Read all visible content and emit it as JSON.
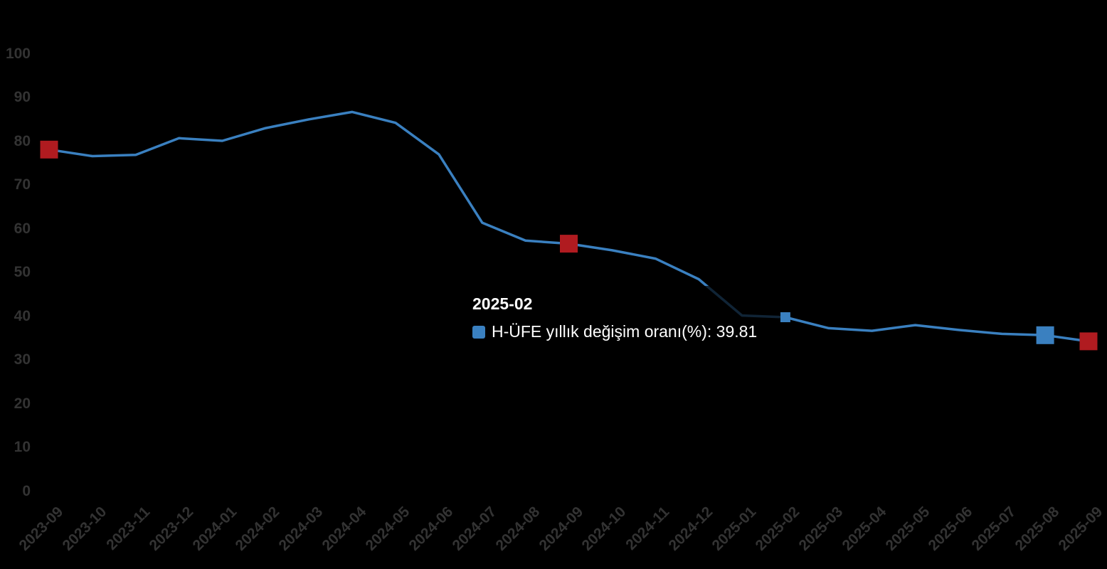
{
  "chart_data": {
    "type": "line",
    "title": "",
    "xlabel": "",
    "ylabel": "",
    "categories": [
      "2023-09",
      "2023-10",
      "2023-11",
      "2023-12",
      "2024-01",
      "2024-02",
      "2024-03",
      "2024-04",
      "2024-05",
      "2024-06",
      "2024-07",
      "2024-08",
      "2024-09",
      "2024-10",
      "2024-11",
      "2024-12",
      "2025-01",
      "2025-02",
      "2025-03",
      "2025-04",
      "2025-05",
      "2025-06",
      "2025-07",
      "2025-08",
      "2025-09"
    ],
    "series": [
      {
        "name": "H-ÜFE yıllık değişim oranı(%)",
        "color": "#3a80c0",
        "values": [
          78.1,
          76.6,
          76.9,
          80.7,
          80.1,
          83.0,
          85.0,
          86.7,
          84.2,
          77.0,
          61.4,
          57.3,
          56.6,
          55.1,
          53.2,
          48.5,
          40.2,
          39.81,
          37.3,
          36.7,
          38.0,
          36.9,
          36.0,
          35.7,
          34.3
        ]
      }
    ],
    "ylim": [
      0,
      100
    ],
    "yticks": [
      0,
      10,
      20,
      30,
      40,
      50,
      60,
      70,
      80,
      90,
      100
    ],
    "grid": false,
    "legend_visible": false,
    "x_label_rotation_deg": 45,
    "background_color": "#000000",
    "highlight_markers": [
      {
        "category": "2023-09",
        "index": 0,
        "color": "#b01b20",
        "size": 25,
        "kind": "endpoint-square"
      },
      {
        "category": "2024-09",
        "index": 12,
        "color": "#b01b20",
        "size": 25,
        "kind": "endpoint-square"
      },
      {
        "category": "2025-02",
        "index": 17,
        "color": "#3a80c0",
        "size": 14,
        "kind": "hovered-point-square"
      },
      {
        "category": "2025-08",
        "index": 23,
        "color": "#3a80c0",
        "size": 25,
        "kind": "endpoint-square"
      },
      {
        "category": "2025-09",
        "index": 24,
        "color": "#b01b20",
        "size": 25,
        "kind": "endpoint-square"
      }
    ]
  },
  "tooltip": {
    "title": "2025-02",
    "series_name": "H-ÜFE yıllık değişim oranı(%)",
    "value": "39.81",
    "text": "H-ÜFE yıllık değişim oranı(%): 39.81",
    "swatch_color": "#3a80c0"
  },
  "colors": {
    "background": "#000000",
    "axis_label": "#333333",
    "line": "#3a80c0",
    "marker_red": "#b01b20",
    "marker_blue": "#3a80c0",
    "tooltip_text": "#ffffff"
  }
}
